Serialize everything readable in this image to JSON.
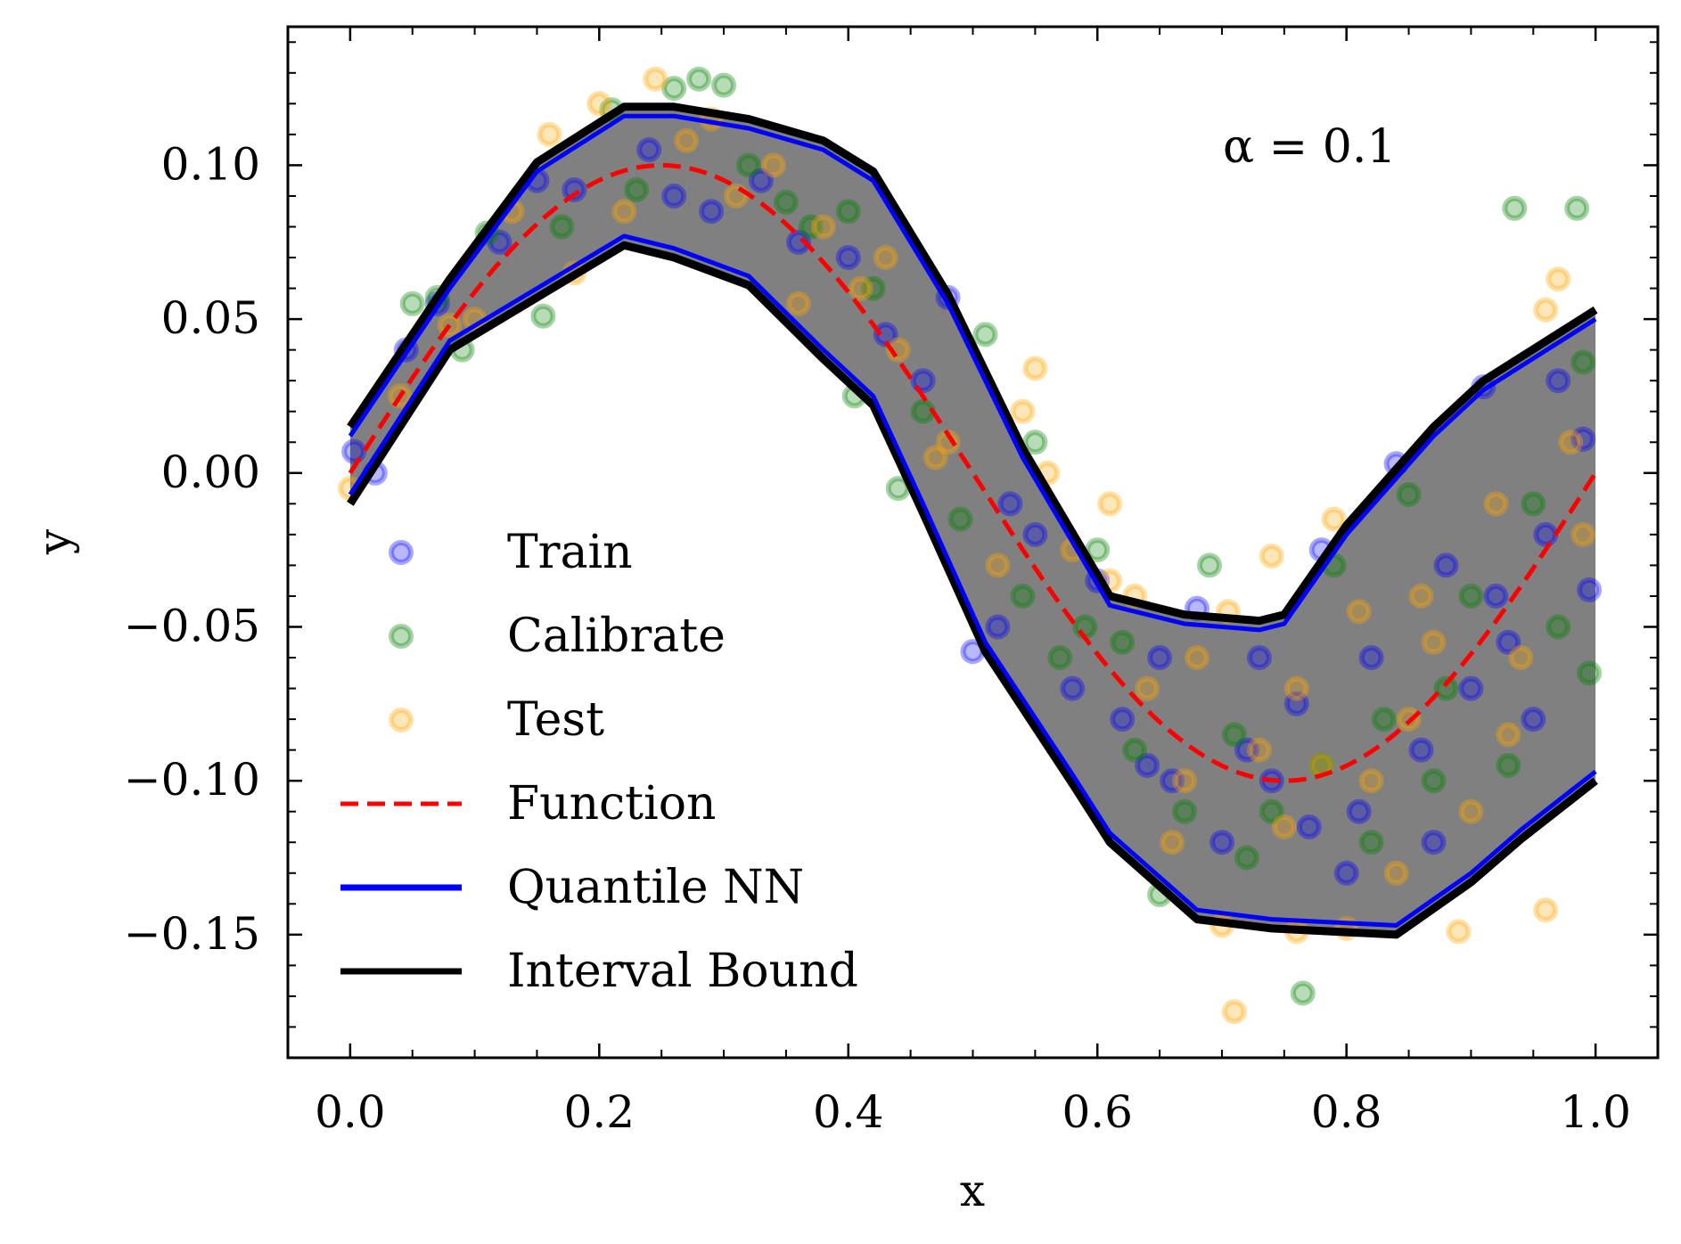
{
  "chart_data": {
    "type": "scatter",
    "xlabel": "x",
    "ylabel": "y",
    "xlim": [
      -0.05,
      1.05
    ],
    "ylim": [
      -0.19,
      0.145
    ],
    "xticks": [
      0.0,
      0.2,
      0.4,
      0.6,
      0.8,
      1.0
    ],
    "xtick_labels": [
      "0.0",
      "0.2",
      "0.4",
      "0.6",
      "0.8",
      "1.0"
    ],
    "yticks": [
      0.1,
      0.05,
      0.0,
      -0.05,
      -0.1,
      -0.15
    ],
    "ytick_labels": [
      "0.10",
      "0.05",
      "0.00",
      "−0.05",
      "−0.10",
      "−0.15"
    ],
    "annotation": "α = 0.1",
    "legend_position": "lower-left",
    "legend": [
      {
        "label": "Train",
        "kind": "marker",
        "color": "#0000ff"
      },
      {
        "label": "Calibrate",
        "kind": "marker",
        "color": "#008000"
      },
      {
        "label": "Test",
        "kind": "marker",
        "color": "#ffa500"
      },
      {
        "label": "Function",
        "kind": "dashed-line",
        "color": "#ff0000"
      },
      {
        "label": "Quantile NN",
        "kind": "line",
        "color": "#0000ff"
      },
      {
        "label": "Interval Bound",
        "kind": "line",
        "color": "#000000"
      }
    ],
    "colors": {
      "train": "#0000ff",
      "calibrate": "#008000",
      "test": "#ffa500",
      "function": "#ff0000",
      "quantile": "#0000ff",
      "interval": "#000000",
      "band": "#808080"
    },
    "function": {
      "label": "Function",
      "formula": "0.1*sin(2*pi*x)",
      "x_range": [
        0,
        1
      ]
    },
    "quantile_nn": {
      "upper": {
        "x": [
          0.0,
          0.08,
          0.15,
          0.22,
          0.26,
          0.32,
          0.38,
          0.42,
          0.48,
          0.54,
          0.61,
          0.67,
          0.73,
          0.75,
          0.8,
          0.87,
          0.91,
          1.0
        ],
        "y": [
          0.012,
          0.06,
          0.098,
          0.116,
          0.116,
          0.112,
          0.105,
          0.095,
          0.055,
          0.005,
          -0.043,
          -0.049,
          -0.051,
          -0.049,
          -0.02,
          0.012,
          0.027,
          0.05
        ]
      },
      "lower": {
        "x": [
          0.0,
          0.08,
          0.15,
          0.22,
          0.26,
          0.32,
          0.38,
          0.42,
          0.46,
          0.51,
          0.58,
          0.61,
          0.68,
          0.74,
          0.84,
          0.9,
          0.94,
          1.0
        ],
        "y": [
          -0.007,
          0.043,
          0.06,
          0.077,
          0.073,
          0.064,
          0.04,
          0.025,
          -0.01,
          -0.055,
          -0.098,
          -0.117,
          -0.142,
          -0.145,
          -0.147,
          -0.13,
          -0.116,
          -0.097
        ]
      }
    },
    "interval_bound": {
      "upper": {
        "x": [
          0.0,
          0.08,
          0.15,
          0.22,
          0.26,
          0.32,
          0.38,
          0.42,
          0.48,
          0.54,
          0.61,
          0.67,
          0.73,
          0.75,
          0.8,
          0.87,
          0.91,
          1.0
        ],
        "y": [
          0.015,
          0.063,
          0.101,
          0.119,
          0.119,
          0.115,
          0.108,
          0.098,
          0.058,
          0.008,
          -0.04,
          -0.046,
          -0.048,
          -0.046,
          -0.017,
          0.015,
          0.03,
          0.053
        ]
      },
      "lower": {
        "x": [
          0.0,
          0.08,
          0.15,
          0.22,
          0.26,
          0.32,
          0.38,
          0.42,
          0.46,
          0.51,
          0.58,
          0.61,
          0.68,
          0.74,
          0.84,
          0.9,
          0.94,
          1.0
        ],
        "y": [
          -0.01,
          0.04,
          0.057,
          0.074,
          0.07,
          0.061,
          0.037,
          0.022,
          -0.013,
          -0.058,
          -0.101,
          -0.12,
          -0.145,
          -0.148,
          -0.15,
          -0.133,
          -0.119,
          -0.1
        ]
      }
    },
    "series": [
      {
        "name": "Train",
        "points": [
          [
            0.003,
            0.007
          ],
          [
            0.02,
            0.0
          ],
          [
            0.045,
            0.04
          ],
          [
            0.07,
            0.055
          ],
          [
            0.12,
            0.075
          ],
          [
            0.15,
            0.095
          ],
          [
            0.18,
            0.092
          ],
          [
            0.24,
            0.105
          ],
          [
            0.26,
            0.09
          ],
          [
            0.29,
            0.085
          ],
          [
            0.33,
            0.095
          ],
          [
            0.36,
            0.075
          ],
          [
            0.4,
            0.07
          ],
          [
            0.43,
            0.045
          ],
          [
            0.46,
            0.03
          ],
          [
            0.48,
            0.057
          ],
          [
            0.5,
            -0.058
          ],
          [
            0.52,
            -0.05
          ],
          [
            0.55,
            -0.02
          ],
          [
            0.58,
            -0.07
          ],
          [
            0.62,
            -0.08
          ],
          [
            0.65,
            -0.06
          ],
          [
            0.68,
            -0.044
          ],
          [
            0.7,
            -0.12
          ],
          [
            0.72,
            -0.09
          ],
          [
            0.74,
            -0.1
          ],
          [
            0.76,
            -0.075
          ],
          [
            0.78,
            -0.025
          ],
          [
            0.8,
            -0.13
          ],
          [
            0.82,
            -0.06
          ],
          [
            0.84,
            0.003
          ],
          [
            0.86,
            -0.09
          ],
          [
            0.88,
            -0.03
          ],
          [
            0.9,
            -0.07
          ],
          [
            0.91,
            0.028
          ],
          [
            0.93,
            -0.055
          ],
          [
            0.95,
            -0.08
          ],
          [
            0.97,
            0.03
          ],
          [
            0.99,
            0.011
          ],
          [
            0.995,
            -0.038
          ],
          [
            0.6,
            -0.035
          ],
          [
            0.66,
            -0.1
          ],
          [
            0.77,
            -0.115
          ],
          [
            0.81,
            -0.11
          ],
          [
            0.87,
            -0.12
          ],
          [
            0.53,
            -0.01
          ],
          [
            0.64,
            -0.095
          ],
          [
            0.73,
            -0.06
          ],
          [
            0.92,
            -0.04
          ],
          [
            0.96,
            -0.02
          ]
        ]
      },
      {
        "name": "Calibrate",
        "points": [
          [
            0.05,
            0.055
          ],
          [
            0.07,
            0.057
          ],
          [
            0.09,
            0.04
          ],
          [
            0.11,
            0.078
          ],
          [
            0.155,
            0.051
          ],
          [
            0.21,
            0.118
          ],
          [
            0.26,
            0.125
          ],
          [
            0.28,
            0.128
          ],
          [
            0.3,
            0.126
          ],
          [
            0.23,
            0.092
          ],
          [
            0.35,
            0.088
          ],
          [
            0.4,
            0.085
          ],
          [
            0.405,
            0.025
          ],
          [
            0.44,
            -0.005
          ],
          [
            0.51,
            0.045
          ],
          [
            0.55,
            0.01
          ],
          [
            0.57,
            -0.06
          ],
          [
            0.6,
            -0.025
          ],
          [
            0.62,
            -0.055
          ],
          [
            0.65,
            -0.137
          ],
          [
            0.69,
            -0.03
          ],
          [
            0.71,
            -0.085
          ],
          [
            0.74,
            -0.11
          ],
          [
            0.765,
            -0.169
          ],
          [
            0.79,
            -0.03
          ],
          [
            0.82,
            -0.12
          ],
          [
            0.85,
            -0.007
          ],
          [
            0.88,
            -0.07
          ],
          [
            0.9,
            -0.04
          ],
          [
            0.935,
            0.086
          ],
          [
            0.985,
            0.086
          ],
          [
            0.99,
            0.036
          ],
          [
            0.995,
            -0.065
          ],
          [
            0.97,
            -0.05
          ],
          [
            0.95,
            -0.01
          ],
          [
            0.93,
            -0.095
          ],
          [
            0.87,
            -0.1
          ],
          [
            0.83,
            -0.08
          ],
          [
            0.78,
            -0.095
          ],
          [
            0.72,
            -0.125
          ],
          [
            0.67,
            -0.11
          ],
          [
            0.63,
            -0.09
          ],
          [
            0.59,
            -0.05
          ],
          [
            0.54,
            -0.04
          ],
          [
            0.49,
            -0.015
          ],
          [
            0.46,
            0.02
          ],
          [
            0.42,
            0.06
          ],
          [
            0.37,
            0.08
          ],
          [
            0.32,
            0.1
          ],
          [
            0.17,
            0.08
          ]
        ]
      },
      {
        "name": "Test",
        "points": [
          [
            0.0,
            -0.005
          ],
          [
            0.04,
            0.025
          ],
          [
            0.08,
            0.048
          ],
          [
            0.1,
            0.05
          ],
          [
            0.16,
            0.11
          ],
          [
            0.2,
            0.12
          ],
          [
            0.245,
            0.128
          ],
          [
            0.22,
            0.085
          ],
          [
            0.27,
            0.108
          ],
          [
            0.31,
            0.09
          ],
          [
            0.34,
            0.1
          ],
          [
            0.38,
            0.08
          ],
          [
            0.41,
            0.06
          ],
          [
            0.44,
            0.04
          ],
          [
            0.47,
            0.005
          ],
          [
            0.54,
            0.02
          ],
          [
            0.55,
            0.034
          ],
          [
            0.56,
            0.0
          ],
          [
            0.61,
            -0.01
          ],
          [
            0.61,
            -0.035
          ],
          [
            0.64,
            -0.07
          ],
          [
            0.67,
            -0.1
          ],
          [
            0.7,
            -0.147
          ],
          [
            0.705,
            -0.045
          ],
          [
            0.71,
            -0.175
          ],
          [
            0.74,
            -0.027
          ],
          [
            0.76,
            -0.149
          ],
          [
            0.78,
            -0.095
          ],
          [
            0.79,
            -0.015
          ],
          [
            0.8,
            -0.148
          ],
          [
            0.82,
            -0.1
          ],
          [
            0.85,
            -0.08
          ],
          [
            0.86,
            -0.04
          ],
          [
            0.89,
            -0.149
          ],
          [
            0.92,
            -0.01
          ],
          [
            0.96,
            0.053
          ],
          [
            0.97,
            0.063
          ],
          [
            0.96,
            -0.142
          ],
          [
            0.99,
            -0.02
          ],
          [
            0.98,
            0.01
          ],
          [
            0.94,
            -0.06
          ],
          [
            0.9,
            -0.11
          ],
          [
            0.84,
            -0.13
          ],
          [
            0.76,
            -0.07
          ],
          [
            0.73,
            -0.09
          ],
          [
            0.68,
            -0.06
          ],
          [
            0.66,
            -0.12
          ],
          [
            0.63,
            -0.04
          ],
          [
            0.58,
            -0.025
          ],
          [
            0.52,
            -0.03
          ],
          [
            0.48,
            0.01
          ],
          [
            0.43,
            0.07
          ],
          [
            0.36,
            0.055
          ],
          [
            0.29,
            0.115
          ],
          [
            0.18,
            0.065
          ],
          [
            0.13,
            0.085
          ],
          [
            0.75,
            -0.115
          ],
          [
            0.81,
            -0.045
          ],
          [
            0.87,
            -0.055
          ],
          [
            0.93,
            -0.085
          ]
        ]
      }
    ]
  }
}
